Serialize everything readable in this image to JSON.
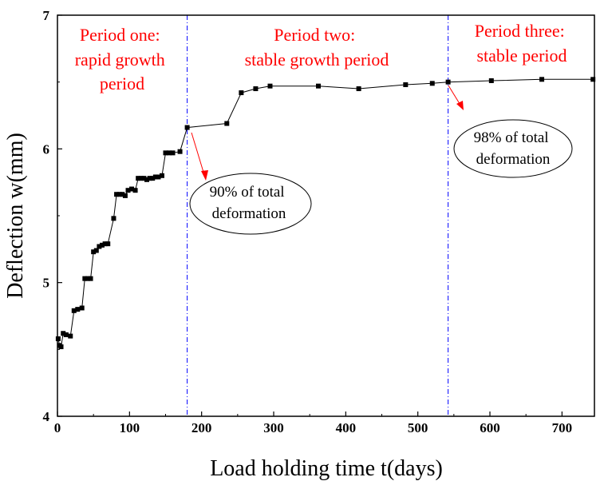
{
  "chart_data": {
    "type": "line",
    "xlabel": "Load holding time   t(days)",
    "ylabel": "Deflection   w(mm)",
    "xlim": [
      0,
      745
    ],
    "ylim": [
      4,
      7
    ],
    "x_ticks": [
      0,
      100,
      200,
      300,
      400,
      500,
      600,
      700
    ],
    "y_ticks": [
      4,
      5,
      6,
      7
    ],
    "grid": false,
    "series": [
      {
        "name": "Deflection",
        "color": "#000000",
        "marker": "square",
        "x": [
          1,
          3,
          5,
          8,
          12,
          18,
          23,
          28,
          34,
          38,
          42,
          46,
          50,
          54,
          58,
          62,
          66,
          70,
          78,
          82,
          86,
          90,
          94,
          98,
          103,
          108,
          112,
          116,
          120,
          124,
          128,
          132,
          136,
          140,
          145,
          150,
          155,
          160,
          170,
          180,
          235,
          255,
          275,
          295,
          362,
          418,
          483,
          520,
          542,
          602,
          672,
          743
        ],
        "y": [
          4.58,
          4.53,
          4.52,
          4.62,
          4.61,
          4.6,
          4.79,
          4.8,
          4.81,
          5.03,
          5.03,
          5.03,
          5.23,
          5.24,
          5.27,
          5.28,
          5.29,
          5.29,
          5.48,
          5.66,
          5.66,
          5.66,
          5.65,
          5.69,
          5.7,
          5.69,
          5.78,
          5.78,
          5.78,
          5.77,
          5.78,
          5.78,
          5.79,
          5.79,
          5.8,
          5.97,
          5.97,
          5.97,
          5.98,
          6.16,
          6.19,
          6.42,
          6.45,
          6.47,
          6.47,
          6.45,
          6.48,
          6.49,
          6.5,
          6.51,
          6.52,
          6.52
        ]
      }
    ],
    "dividers": [
      {
        "x": 180,
        "color": "#0000ff",
        "style": "dash-dot"
      },
      {
        "x": 542,
        "color": "#0000ff",
        "style": "dash-dot"
      }
    ],
    "periods": [
      {
        "lines": [
          "Period one:",
          "rapid growth",
          "period"
        ],
        "color": "#ff0000"
      },
      {
        "lines": [
          "Period two:",
          "stable growth period"
        ],
        "color": "#ff0000"
      },
      {
        "lines": [
          "Period three:",
          "stable period"
        ],
        "color": "#ff0000"
      }
    ],
    "annotations": [
      {
        "lines": [
          "90% of total",
          "deformation"
        ],
        "point": {
          "x": 180,
          "y": 6.16
        }
      },
      {
        "lines": [
          "98% of total",
          "deformation"
        ],
        "point": {
          "x": 542,
          "y": 6.5
        }
      }
    ],
    "arrow_color": "#ff0000"
  }
}
